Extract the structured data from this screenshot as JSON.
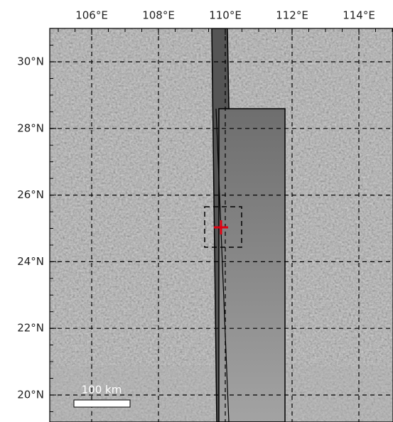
{
  "map": {
    "lon_labels": [
      "106°E",
      "108°E",
      "110°E",
      "112°E",
      "114°E"
    ],
    "lat_labels": [
      "30°N",
      "28°N",
      "26°N",
      "24°N",
      "22°N",
      "20°N"
    ],
    "scale_bar_label": "100 km"
  }
}
